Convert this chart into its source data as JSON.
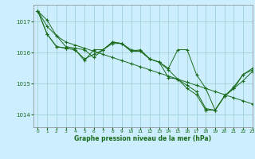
{
  "background_color": "#cceeff",
  "grid_color": "#99cccc",
  "line_color": "#1a6b1a",
  "text_color": "#1a6b1a",
  "xlabel": "Graphe pression niveau de la mer (hPa)",
  "ylim": [
    1013.6,
    1017.55
  ],
  "xlim": [
    -0.5,
    23
  ],
  "yticks": [
    1014,
    1015,
    1016,
    1017
  ],
  "xticks": [
    0,
    1,
    2,
    3,
    4,
    5,
    6,
    7,
    8,
    9,
    10,
    11,
    12,
    13,
    14,
    15,
    16,
    17,
    18,
    19,
    20,
    21,
    22,
    23
  ],
  "series": [
    [
      1017.35,
      1017.05,
      1016.55,
      1016.2,
      1016.15,
      1016.1,
      1015.85,
      1016.1,
      1016.35,
      1016.3,
      1016.1,
      1016.05,
      1015.8,
      1015.7,
      1015.45,
      1015.15,
      1014.95,
      1014.75,
      1014.2,
      1014.15,
      1014.6,
      1014.85,
      1015.1,
      1015.4
    ],
    [
      1017.35,
      1016.6,
      1016.2,
      1016.15,
      1016.1,
      1015.8,
      1015.95,
      1016.1,
      1016.3,
      1016.3,
      1016.05,
      1016.05,
      1015.8,
      1015.7,
      1015.2,
      1015.15,
      1014.85,
      1014.65,
      1014.15,
      1014.15,
      1014.6,
      1014.9,
      1015.3,
      1015.45
    ],
    [
      1017.35,
      1016.6,
      1016.2,
      1016.15,
      1016.1,
      1015.75,
      1016.1,
      1016.1,
      1016.35,
      1016.3,
      1016.05,
      1016.1,
      1015.8,
      1015.7,
      1015.5,
      1016.1,
      1016.1,
      1015.3,
      1014.85,
      1014.15,
      1014.6,
      1014.85,
      1015.3,
      1015.5
    ],
    [
      1017.35,
      1016.85,
      1016.55,
      1016.35,
      1016.25,
      1016.15,
      1016.05,
      1015.95,
      1015.85,
      1015.75,
      1015.65,
      1015.55,
      1015.45,
      1015.35,
      1015.25,
      1015.15,
      1015.05,
      1014.95,
      1014.85,
      1014.75,
      1014.65,
      1014.55,
      1014.45,
      1014.35
    ]
  ]
}
